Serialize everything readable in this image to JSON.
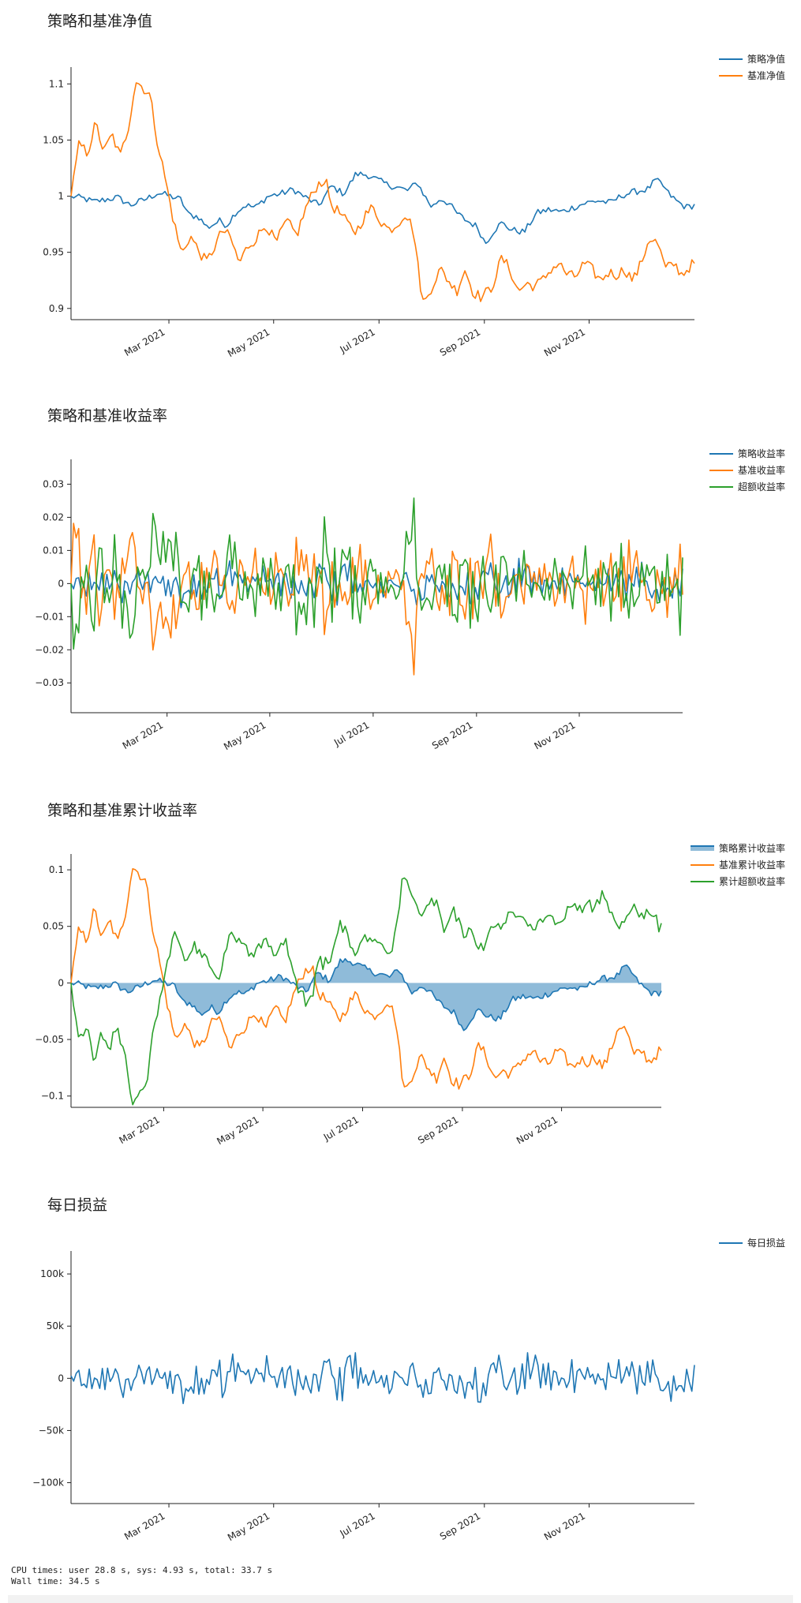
{
  "colors": {
    "blue": "#1f77b4",
    "orange": "#ff7f0e",
    "green": "#2ca02c",
    "fill": "#1f77b4"
  },
  "chart_data": [
    {
      "type": "line",
      "title": "策略和基准净值",
      "legend_position": "top-right",
      "x_ticks": [
        "Mar 2021",
        "May 2021",
        "Jul 2021",
        "Sep 2021",
        "Nov 2021"
      ],
      "ylim": [
        0.89,
        1.115
      ],
      "y_ticks": [
        0.9,
        0.95,
        1,
        1.05,
        1.1
      ],
      "y_tick_labels": [
        "0.9",
        "0.95",
        "1",
        "1.05",
        "1.1"
      ],
      "series": [
        {
          "name": "策略净值",
          "color": "blue",
          "kind": "strategy_nav"
        },
        {
          "name": "基准净值",
          "color": "orange",
          "kind": "bench_nav"
        }
      ]
    },
    {
      "type": "line",
      "title": "策略和基准收益率",
      "legend_position": "top-right",
      "x_ticks": [
        "Mar 2021",
        "May 2021",
        "Jul 2021",
        "Sep 2021",
        "Nov 2021"
      ],
      "ylim": [
        -0.039,
        0.0375
      ],
      "y_ticks": [
        -0.03,
        -0.02,
        -0.01,
        0,
        0.01,
        0.02,
        0.03
      ],
      "y_tick_labels": [
        "−0.03",
        "−0.02",
        "−0.01",
        "0",
        "0.01",
        "0.02",
        "0.03"
      ],
      "series": [
        {
          "name": "策略收益率",
          "color": "blue",
          "kind": "strategy_ret"
        },
        {
          "name": "基准收益率",
          "color": "orange",
          "kind": "bench_ret"
        },
        {
          "name": "超额收益率",
          "color": "green",
          "kind": "excess_ret"
        }
      ]
    },
    {
      "type": "area",
      "title": "策略和基准累计收益率",
      "legend_position": "top-right",
      "x_ticks": [
        "Mar 2021",
        "May 2021",
        "Jul 2021",
        "Sep 2021",
        "Nov 2021"
      ],
      "ylim": [
        -0.11,
        0.114
      ],
      "y_ticks": [
        -0.1,
        -0.05,
        0,
        0.05,
        0.1
      ],
      "y_tick_labels": [
        "−0.1",
        "−0.05",
        "0",
        "0.05",
        "0.1"
      ],
      "series": [
        {
          "name": "策略累计收益率",
          "color": "blue",
          "kind": "strategy_cum",
          "filled": true
        },
        {
          "name": "基准累计收益率",
          "color": "orange",
          "kind": "bench_cum"
        },
        {
          "name": "累计超额收益率",
          "color": "green",
          "kind": "excess_cum"
        }
      ]
    },
    {
      "type": "line",
      "title": "每日损益",
      "legend_position": "top-right",
      "x_ticks": [
        "Mar 2021",
        "May 2021",
        "Jul 2021",
        "Sep 2021",
        "Nov 2021"
      ],
      "ylim": [
        -120000,
        122000
      ],
      "y_ticks": [
        -100000,
        -50000,
        0,
        50000,
        100000
      ],
      "y_tick_labels": [
        "−100k",
        "−50k",
        "0",
        "50k",
        "100k"
      ],
      "series": [
        {
          "name": "每日损益",
          "color": "blue",
          "kind": "pnl"
        }
      ]
    }
  ],
  "strategy_nav_points": [
    [
      0,
      1.0
    ],
    [
      12,
      0.998
    ],
    [
      22,
      0.995
    ],
    [
      34,
      0.997
    ],
    [
      45,
      0.999
    ],
    [
      58,
      0.992
    ],
    [
      72,
      0.997
    ],
    [
      85,
      1.003
    ],
    [
      97,
      1.0
    ],
    [
      107,
      0.997
    ],
    [
      115,
      0.983
    ],
    [
      124,
      0.982
    ],
    [
      133,
      0.972
    ],
    [
      145,
      0.978
    ],
    [
      152,
      0.974
    ],
    [
      160,
      0.985
    ],
    [
      170,
      0.992
    ],
    [
      180,
      0.99
    ],
    [
      192,
      1.0
    ],
    [
      204,
      1.002
    ],
    [
      217,
      1.006
    ],
    [
      230,
      0.998
    ],
    [
      242,
      0.992
    ],
    [
      254,
      1.009
    ],
    [
      266,
      1.002
    ],
    [
      278,
      1.02
    ],
    [
      289,
      1.019
    ],
    [
      300,
      1.014
    ],
    [
      309,
      1.01
    ],
    [
      318,
      1.008
    ],
    [
      328,
      1.005
    ],
    [
      338,
      1.012
    ],
    [
      345,
      1.0
    ],
    [
      352,
      0.99
    ],
    [
      360,
      0.998
    ],
    [
      368,
      0.994
    ],
    [
      376,
      0.985
    ],
    [
      386,
      0.978
    ],
    [
      396,
      0.973
    ],
    [
      404,
      0.958
    ],
    [
      413,
      0.97
    ],
    [
      420,
      0.976
    ],
    [
      430,
      0.97
    ],
    [
      442,
      0.968
    ],
    [
      454,
      0.985
    ],
    [
      466,
      0.988
    ],
    [
      478,
      0.986
    ],
    [
      490,
      0.99
    ],
    [
      502,
      0.994
    ],
    [
      514,
      0.996
    ],
    [
      526,
      0.994
    ],
    [
      538,
      1.001
    ],
    [
      550,
      1.004
    ],
    [
      562,
      1.006
    ],
    [
      570,
      1.014
    ],
    [
      576,
      1.011
    ],
    [
      582,
      1.003
    ],
    [
      590,
      0.996
    ],
    [
      600,
      0.99
    ],
    [
      608,
      0.992
    ]
  ],
  "bench_nav_points": [
    [
      0,
      1.0
    ],
    [
      8,
      1.047
    ],
    [
      16,
      1.038
    ],
    [
      24,
      1.065
    ],
    [
      32,
      1.039
    ],
    [
      40,
      1.055
    ],
    [
      48,
      1.035
    ],
    [
      56,
      1.062
    ],
    [
      63,
      1.103
    ],
    [
      70,
      1.097
    ],
    [
      77,
      1.09
    ],
    [
      84,
      1.05
    ],
    [
      92,
      1.015
    ],
    [
      100,
      0.978
    ],
    [
      108,
      0.948
    ],
    [
      116,
      0.965
    ],
    [
      124,
      0.952
    ],
    [
      132,
      0.941
    ],
    [
      140,
      0.955
    ],
    [
      148,
      0.97
    ],
    [
      156,
      0.962
    ],
    [
      164,
      0.94
    ],
    [
      172,
      0.955
    ],
    [
      180,
      0.962
    ],
    [
      190,
      0.975
    ],
    [
      200,
      0.958
    ],
    [
      210,
      0.978
    ],
    [
      220,
      0.965
    ],
    [
      230,
      0.992
    ],
    [
      240,
      1.01
    ],
    [
      248,
      1.015
    ],
    [
      254,
      0.992
    ],
    [
      262,
      0.985
    ],
    [
      270,
      0.975
    ],
    [
      278,
      0.968
    ],
    [
      286,
      0.982
    ],
    [
      294,
      0.99
    ],
    [
      302,
      0.978
    ],
    [
      310,
      0.97
    ],
    [
      318,
      0.975
    ],
    [
      326,
      0.985
    ],
    [
      334,
      0.97
    ],
    [
      340,
      0.925
    ],
    [
      344,
      0.903
    ],
    [
      352,
      0.92
    ],
    [
      360,
      0.935
    ],
    [
      368,
      0.925
    ],
    [
      376,
      0.915
    ],
    [
      384,
      0.935
    ],
    [
      392,
      0.915
    ],
    [
      400,
      0.91
    ],
    [
      410,
      0.918
    ],
    [
      420,
      0.945
    ],
    [
      428,
      0.935
    ],
    [
      436,
      0.915
    ],
    [
      444,
      0.922
    ],
    [
      452,
      0.92
    ],
    [
      460,
      0.925
    ],
    [
      468,
      0.935
    ],
    [
      476,
      0.94
    ],
    [
      484,
      0.93
    ],
    [
      492,
      0.928
    ],
    [
      500,
      0.94
    ],
    [
      508,
      0.935
    ],
    [
      516,
      0.925
    ],
    [
      524,
      0.932
    ],
    [
      532,
      0.93
    ],
    [
      540,
      0.935
    ],
    [
      548,
      0.925
    ],
    [
      556,
      0.94
    ],
    [
      564,
      0.963
    ],
    [
      572,
      0.958
    ],
    [
      580,
      0.935
    ],
    [
      588,
      0.94
    ],
    [
      596,
      0.93
    ],
    [
      604,
      0.938
    ],
    [
      608,
      0.94
    ]
  ],
  "cpu_text": "CPU times: user 28.8 s, sys: 4.93 s, total: 33.7 s\nWall time: 34.5 s"
}
